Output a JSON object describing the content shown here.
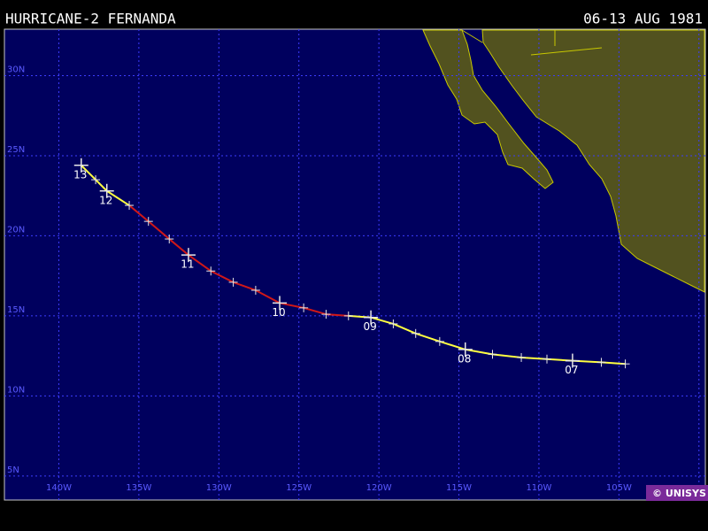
{
  "header": {
    "title": "HURRICANE-2 FERNANDA",
    "dates": "06-13 AUG 1981"
  },
  "map": {
    "lon_range": [
      -143.4,
      -99.6
    ],
    "lat_range": [
      3.5,
      32.9
    ],
    "lat_ticks": [
      {
        "value": 30,
        "label": "30N"
      },
      {
        "value": 25,
        "label": "25N"
      },
      {
        "value": 20,
        "label": "20N"
      },
      {
        "value": 15,
        "label": "15N"
      },
      {
        "value": 10,
        "label": "10N"
      },
      {
        "value": 5,
        "label": "5N"
      }
    ],
    "lon_ticks": [
      {
        "value": -140,
        "label": "140W"
      },
      {
        "value": -135,
        "label": "135W"
      },
      {
        "value": -130,
        "label": "130W"
      },
      {
        "value": -125,
        "label": "125W"
      },
      {
        "value": -120,
        "label": "120W"
      },
      {
        "value": -115,
        "label": "115W"
      },
      {
        "value": -110,
        "label": "110W"
      },
      {
        "value": -105,
        "label": "105W"
      },
      {
        "value": -100,
        "label": null
      }
    ],
    "track": [
      {
        "lon": -104.6,
        "lat": 12.0,
        "color": "#ffff40"
      },
      {
        "lon": -106.1,
        "lat": 12.1,
        "color": "#ffff40"
      },
      {
        "lon": -107.9,
        "lat": 12.2,
        "color": "#ffff40",
        "label": "07"
      },
      {
        "lon": -109.5,
        "lat": 12.3,
        "color": "#ffff40"
      },
      {
        "lon": -111.1,
        "lat": 12.4,
        "color": "#ffff40"
      },
      {
        "lon": -112.9,
        "lat": 12.6,
        "color": "#ffff40"
      },
      {
        "lon": -114.6,
        "lat": 12.9,
        "color": "#ffff40",
        "label": "08"
      },
      {
        "lon": -116.2,
        "lat": 13.4,
        "color": "#ffff40"
      },
      {
        "lon": -117.7,
        "lat": 13.9,
        "color": "#ffff40"
      },
      {
        "lon": -119.1,
        "lat": 14.5,
        "color": "#ffff40"
      },
      {
        "lon": -120.5,
        "lat": 14.9,
        "color": "#ffff40",
        "label": "09"
      },
      {
        "lon": -121.9,
        "lat": 15.0,
        "color": "#ffff40"
      },
      {
        "lon": -123.3,
        "lat": 15.1,
        "color": "#d01818"
      },
      {
        "lon": -124.7,
        "lat": 15.5,
        "color": "#d01818"
      },
      {
        "lon": -126.2,
        "lat": 15.8,
        "color": "#d01818",
        "label": "10"
      },
      {
        "lon": -127.7,
        "lat": 16.6,
        "color": "#d01818"
      },
      {
        "lon": -129.1,
        "lat": 17.1,
        "color": "#d01818"
      },
      {
        "lon": -130.5,
        "lat": 17.8,
        "color": "#d01818"
      },
      {
        "lon": -131.9,
        "lat": 18.8,
        "color": "#d01818",
        "label": "11"
      },
      {
        "lon": -133.1,
        "lat": 19.8,
        "color": "#d01818"
      },
      {
        "lon": -134.4,
        "lat": 20.9,
        "color": "#d01818"
      },
      {
        "lon": -135.6,
        "lat": 21.9,
        "color": "#d01818"
      },
      {
        "lon": -137.0,
        "lat": 22.8,
        "color": "#ffff40",
        "label": "12"
      },
      {
        "lon": -137.7,
        "lat": 23.5,
        "color": "#ffff40"
      },
      {
        "lon": -138.6,
        "lat": 24.4,
        "color": "#ffff40",
        "label": "13"
      }
    ]
  },
  "credit": "© UNISYS"
}
